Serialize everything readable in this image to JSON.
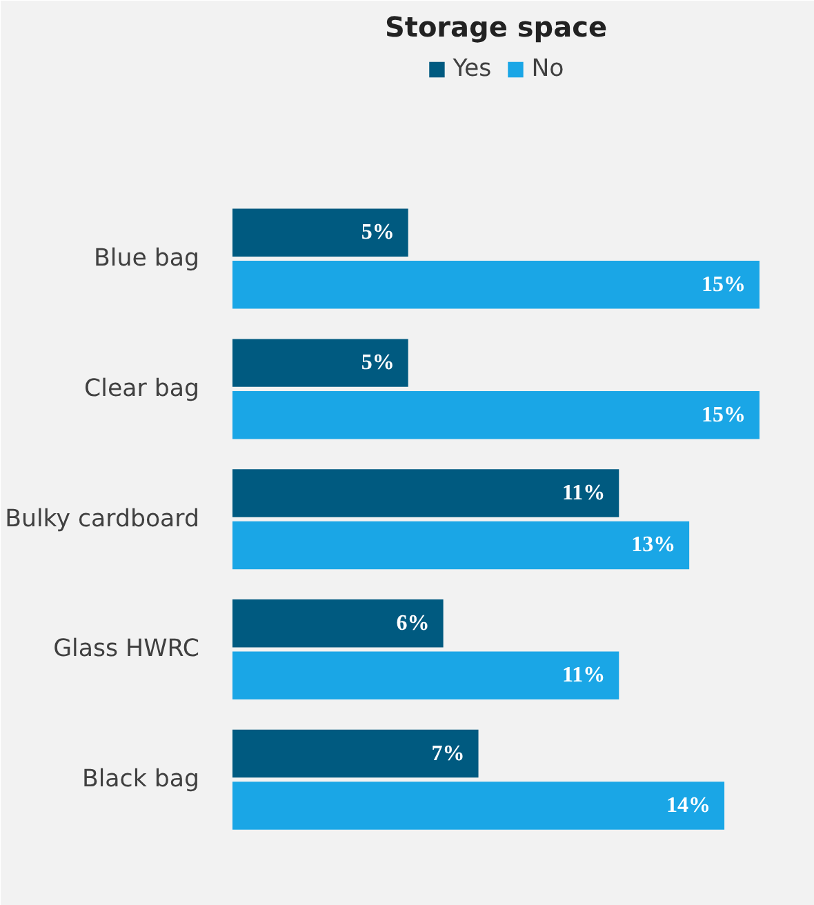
{
  "chart_data": {
    "type": "bar",
    "orientation": "horizontal",
    "title": "Storage space",
    "categories": [
      "Blue bag",
      "Clear bag",
      "Bulky cardboard",
      "Glass HWRC",
      "Black bag"
    ],
    "series": [
      {
        "name": "Yes",
        "color": "#005a80",
        "values": [
          5,
          5,
          11,
          6,
          7
        ],
        "value_labels": [
          "5%",
          "5%",
          "11%",
          "6%",
          "7%"
        ]
      },
      {
        "name": "No",
        "color": "#1aa6e6",
        "values": [
          15,
          15,
          13,
          11,
          14
        ],
        "value_labels": [
          "15%",
          "15%",
          "13%",
          "11%",
          "14%"
        ]
      }
    ],
    "tick_labels": "y",
    "legend": "top",
    "grid": false
  }
}
